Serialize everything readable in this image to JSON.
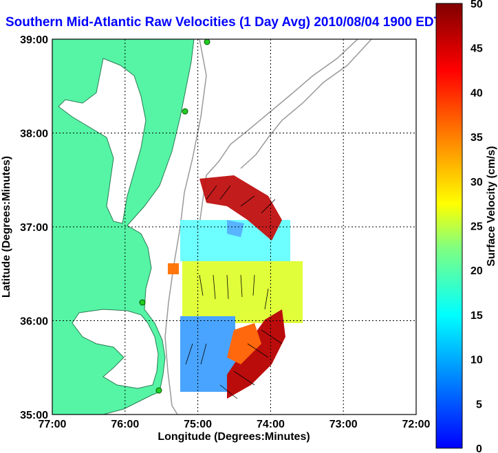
{
  "title": "Southern Mid-Atlantic Raw Velocities (1 Day Avg) 2010/08/04 1900 EDT",
  "map": {
    "xlabel": "Longitude (Degrees:Minutes)",
    "ylabel": "Latitude (Degrees:Minutes)",
    "x_ticks": [
      "77:00",
      "76:00",
      "75:00",
      "74:00",
      "73:00",
      "72:00"
    ],
    "y_ticks": [
      "39:00",
      "38:00",
      "37:00",
      "36:00",
      "35:00"
    ],
    "lon_range": [
      -77,
      -72
    ],
    "lat_range": [
      35,
      39
    ],
    "land_color": "#55f5a5",
    "grid": "dotted"
  },
  "colorbar": {
    "label": "Surface Velocity (cm/s)",
    "ticks": [
      "50",
      "45",
      "40",
      "35",
      "30",
      "25",
      "20",
      "15",
      "10",
      "5",
      "0"
    ],
    "range": [
      0,
      50
    ],
    "colormap": "jet"
  }
}
